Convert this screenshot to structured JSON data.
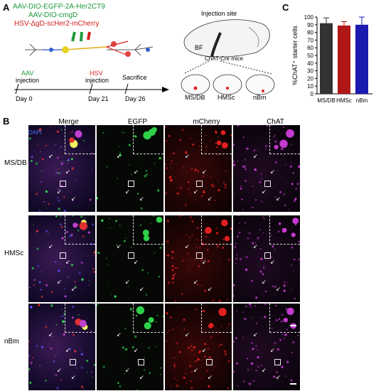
{
  "panels": {
    "a": "A",
    "b": "B",
    "c": "C"
  },
  "panel_a": {
    "virus_lines": [
      "AAV-DIO-EGFP-2A-Her2CT9",
      "AAV-DIO-cmgD",
      "HSV-ΔgD-scHer2-mCherry"
    ],
    "timeline": {
      "events": [
        {
          "top": "AAV",
          "top2": "injection",
          "day": "Day 0"
        },
        {
          "top": "HSV",
          "top2": "injection",
          "day": "Day 21"
        },
        {
          "top": "Sacrifice",
          "top2": "",
          "day": "Day 26"
        }
      ]
    },
    "injection_site": "Injection site",
    "bf": "BF",
    "mice": "ChAT-Cre mice",
    "regions": [
      "MS/DB",
      "HMSc",
      "nBm"
    ]
  },
  "chart_data": {
    "type": "bar",
    "categories": [
      "MS/DB",
      "HMSc",
      "nBm"
    ],
    "values": [
      92,
      89,
      90
    ],
    "errors": [
      7,
      5,
      10
    ],
    "ylabel": "%ChAT⁺ starter cells",
    "ylim": [
      0,
      100
    ],
    "yticks": [
      0,
      10,
      20,
      30,
      40,
      50,
      60,
      70,
      80,
      90,
      100
    ],
    "colors": [
      "#333333",
      "#b01818",
      "#1a1ab0"
    ]
  },
  "panel_b": {
    "columns": [
      "Merge",
      "EGFP",
      "mCherry",
      "ChAT"
    ],
    "rows": [
      "MS/DB",
      "HMSc",
      "nBm"
    ],
    "dapi": "DAPI",
    "col_colors": [
      "#8a3b8f",
      "#2fd04a",
      "#e02020",
      "#c63ad0"
    ]
  }
}
